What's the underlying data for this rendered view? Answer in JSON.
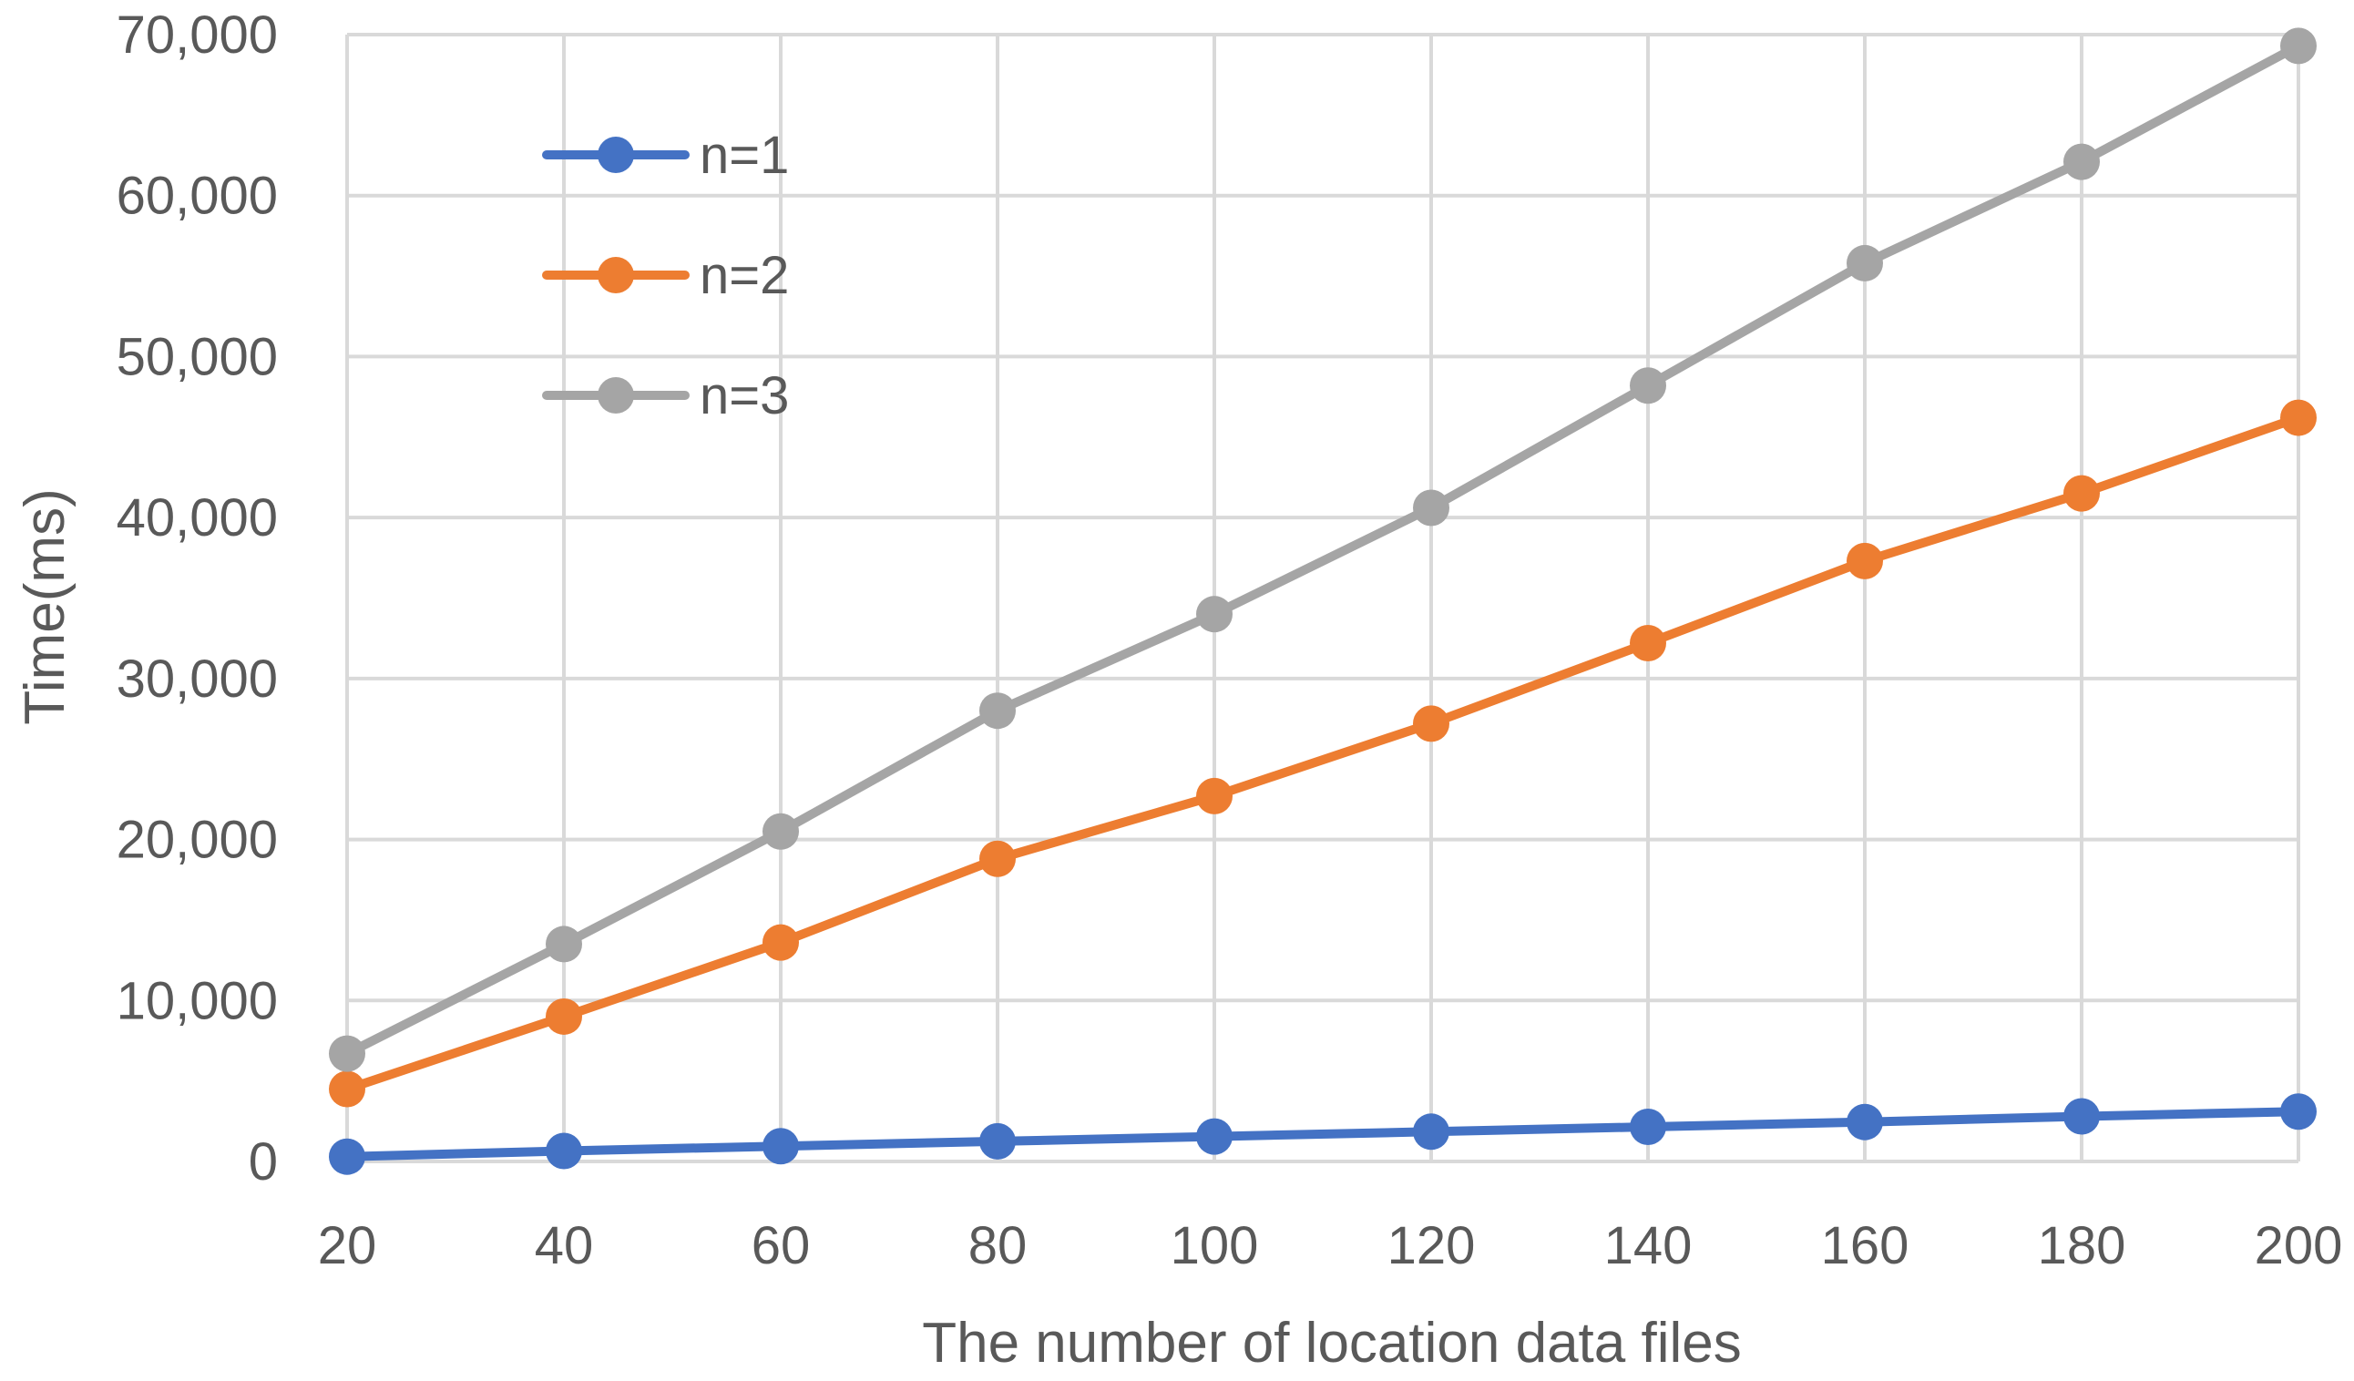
{
  "chart_data": {
    "type": "line",
    "title": "",
    "xlabel": "The number of location data files",
    "ylabel": "Time(ms)",
    "x": [
      20,
      40,
      60,
      80,
      100,
      120,
      140,
      160,
      180,
      200
    ],
    "x_tick_labels": [
      "20",
      "40",
      "60",
      "80",
      "100",
      "120",
      "140",
      "160",
      "180",
      "200"
    ],
    "ylim": [
      0,
      70000
    ],
    "y_ticks": [
      0,
      10000,
      20000,
      30000,
      40000,
      50000,
      60000,
      70000
    ],
    "y_tick_labels": [
      "0",
      "10,000",
      "20,000",
      "30,000",
      "40,000",
      "50,000",
      "60,000",
      "70,000"
    ],
    "grid": true,
    "legend_position": "top-left",
    "series": [
      {
        "name": "n=1",
        "color": "#4472c4",
        "values": [
          300,
          650,
          950,
          1250,
          1550,
          1850,
          2150,
          2450,
          2800,
          3100
        ]
      },
      {
        "name": "n=2",
        "color": "#ed7d31",
        "values": [
          4500,
          9000,
          13600,
          18800,
          22700,
          27200,
          32200,
          37300,
          41500,
          46200
        ]
      },
      {
        "name": "n=3",
        "color": "#a5a5a5",
        "values": [
          6700,
          13500,
          20500,
          28000,
          34000,
          40600,
          48200,
          55800,
          62100,
          69300
        ]
      }
    ]
  }
}
